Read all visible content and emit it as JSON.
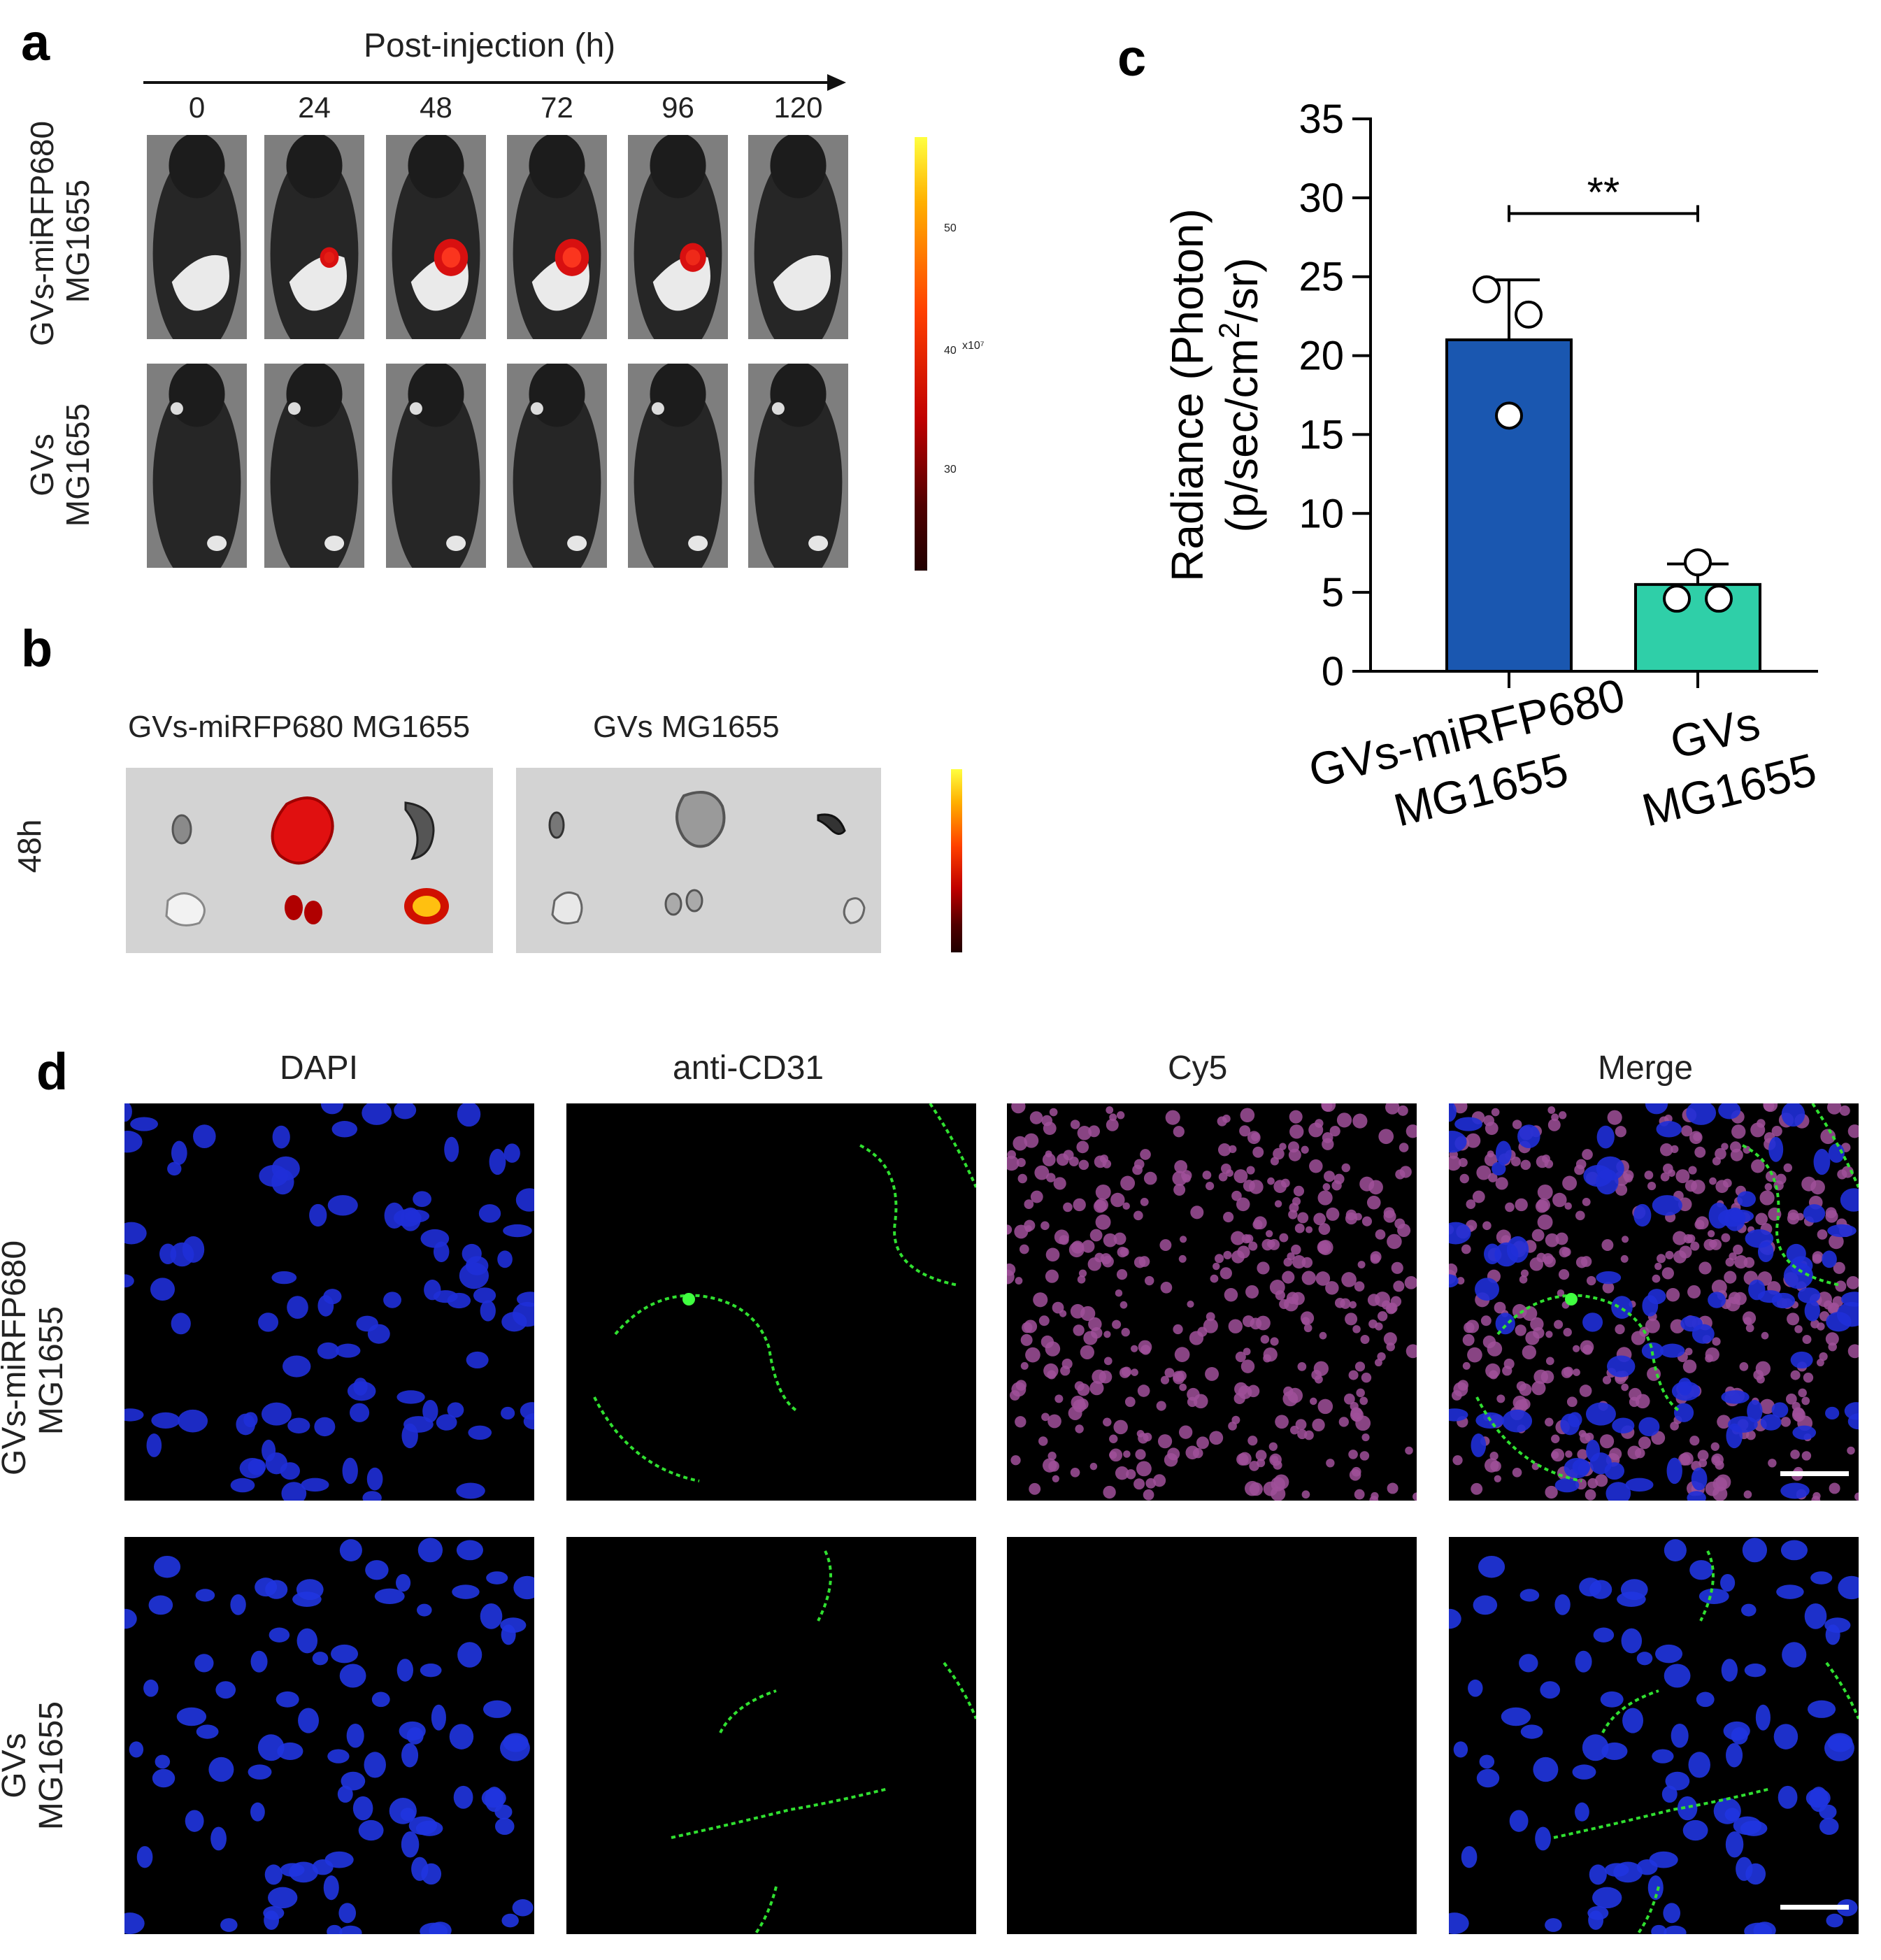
{
  "panel_a": {
    "letter": "a",
    "axis_title": "Post-injection (h)",
    "timepoints": [
      "0",
      "24",
      "48",
      "72",
      "96",
      "120"
    ],
    "row_labels": [
      {
        "line1": "GVs-miRFP680",
        "line2": "MG1655"
      },
      {
        "line1": "GVs",
        "line2": "MG1655"
      }
    ],
    "colorbar_ticks": [
      "50",
      "40",
      "30"
    ],
    "colorbar_unit": "x10⁷",
    "signal_levels_row1": [
      0,
      0.3,
      0.9,
      0.9,
      0.6,
      0
    ]
  },
  "panel_b": {
    "letter": "b",
    "timepoint_label": "48h",
    "image_titles": [
      "GVs-miRFP680 MG1655",
      "GVs MG1655"
    ]
  },
  "panel_c": {
    "letter": "c",
    "significance": "**",
    "chart_data": {
      "type": "bar",
      "categories": [
        {
          "line1": "GVs-miRFP680",
          "line2": "MG1655"
        },
        {
          "line1": "GVs",
          "line2": "MG1655"
        }
      ],
      "values": [
        21.0,
        5.5
      ],
      "error_upper": [
        24.8,
        6.8
      ],
      "points": [
        [
          24.2,
          22.6,
          16.2
        ],
        [
          6.9,
          4.6,
          4.6
        ]
      ],
      "bar_colors": [
        "#1a57b0",
        "#2fcfa8"
      ],
      "ylabel_line1": "Radiance (Photon)",
      "ylabel_line2_parts": [
        "(p/sec/cm",
        "2",
        "/sr)"
      ],
      "yticks": [
        "0",
        "5",
        "10",
        "15",
        "20",
        "25",
        "30",
        "35"
      ],
      "ylim": [
        0,
        35
      ]
    }
  },
  "panel_d": {
    "letter": "d",
    "column_titles": [
      "DAPI",
      "anti-CD31",
      "Cy5",
      "Merge"
    ],
    "row_labels": [
      {
        "line1": "GVs-miRFP680",
        "line2": "MG1655"
      },
      {
        "line1": "GVs",
        "line2": "MG1655"
      }
    ]
  }
}
